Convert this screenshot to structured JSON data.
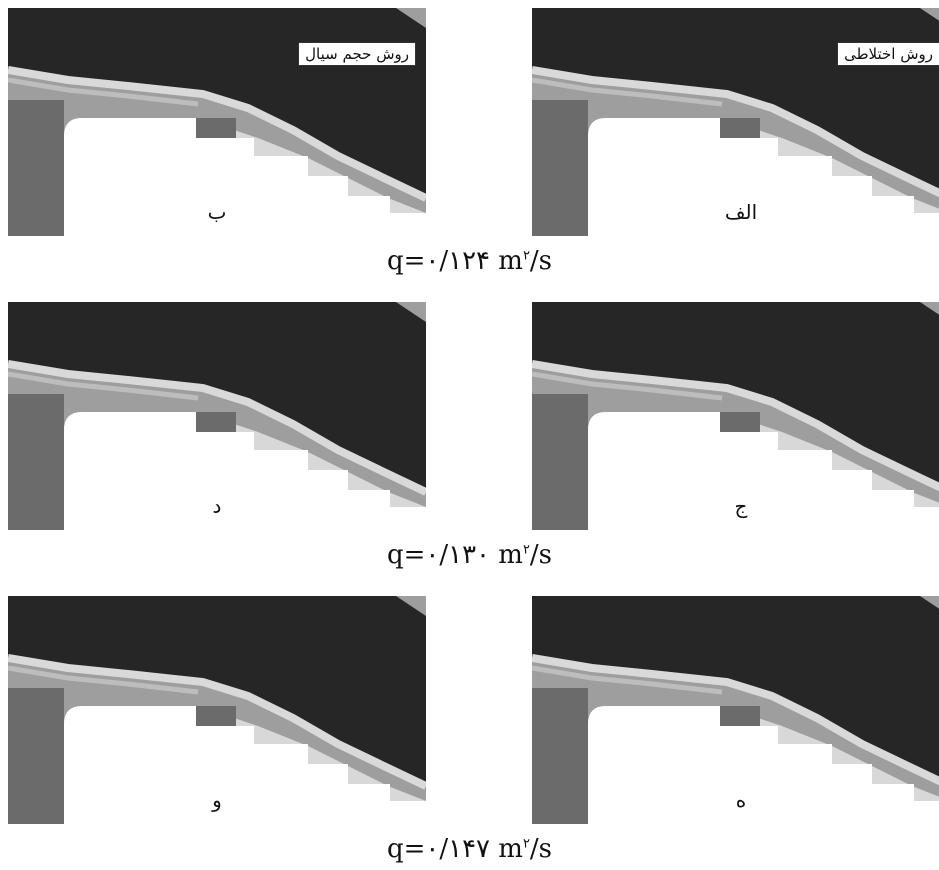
{
  "panels": [
    {
      "id": "b",
      "letter": "ب",
      "method": "روش حجم سیال"
    },
    {
      "id": "alef",
      "letter": "الف",
      "method": "روش اختلاطی"
    },
    {
      "id": "d",
      "letter": "د",
      "method": ""
    },
    {
      "id": "jim",
      "letter": "ج",
      "method": ""
    },
    {
      "id": "vav",
      "letter": "و",
      "method": ""
    },
    {
      "id": "he",
      "letter": "ه",
      "method": ""
    }
  ],
  "captions": [
    {
      "prefix": "q=۰/۱۲۴ m",
      "exp": "۲",
      "suffix": "/s"
    },
    {
      "prefix": "q=۰/۱۳۰ m",
      "exp": "۲",
      "suffix": "/s"
    },
    {
      "prefix": "q=۰/۱۴۷ m",
      "exp": "۲",
      "suffix": "/s"
    }
  ],
  "colors": {
    "air": "#262626",
    "water_surface": "#d9d9d9",
    "water_mixed": "#9e9e9e",
    "structure": "#6b6b6b",
    "step_light": "#d8d8d8",
    "background": "#ffffff"
  }
}
